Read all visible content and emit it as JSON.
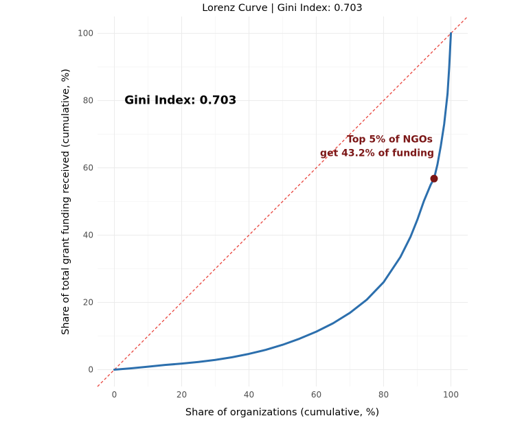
{
  "chart_data": {
    "type": "line",
    "title": "Lorenz Curve | Gini Index: 0.703",
    "xlabel": "Share of organizations (cumulative, %)",
    "ylabel": "Share of total grant funding received (cumulative, %)",
    "xlim": [
      -5,
      105
    ],
    "ylim": [
      -5,
      105
    ],
    "x_ticks": [
      0,
      20,
      40,
      60,
      80,
      100
    ],
    "y_ticks": [
      0,
      20,
      40,
      60,
      80,
      100
    ],
    "grid": true,
    "series": [
      {
        "kind": "lorenz-curve",
        "color": "#2c6fad",
        "x": [
          0,
          5,
          10,
          15,
          20,
          25,
          30,
          35,
          40,
          45,
          50,
          55,
          60,
          65,
          70,
          75,
          80,
          85,
          88,
          90,
          92,
          94,
          95,
          96,
          97,
          98,
          99,
          99.5,
          100
        ],
        "y": [
          0,
          0.4,
          0.9,
          1.4,
          1.8,
          2.3,
          2.9,
          3.7,
          4.7,
          5.9,
          7.4,
          9.2,
          11.3,
          13.8,
          16.9,
          20.8,
          26.0,
          33.5,
          39.5,
          44.5,
          50.2,
          55.0,
          56.8,
          61.0,
          66.5,
          73.0,
          82.0,
          90.0,
          100
        ]
      },
      {
        "kind": "equality-line",
        "color": "#e8423b",
        "x": [
          -5,
          105
        ],
        "y": [
          -5,
          105
        ]
      }
    ],
    "highlight_point": {
      "x": 95,
      "y": 56.8,
      "color": "#7b1616"
    },
    "annotations": {
      "gini_text": "Gini Index: 0.703",
      "gini_pos": {
        "x": 3,
        "y": 79
      },
      "top_text_line1": "Top 5% of NGOs",
      "top_text_line2": "get 43.2% of funding",
      "top_pos": {
        "x": 95,
        "y": 68
      }
    }
  }
}
